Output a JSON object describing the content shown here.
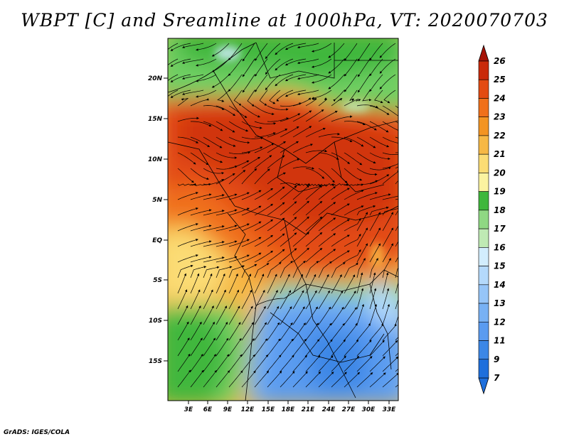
{
  "title": "WBPT [C] and Sreamline at 1000hPa, VT: 2020070703",
  "credit": "GrADS: IGES/COLA",
  "map": {
    "lat_labels": [
      "20N",
      "15N",
      "10N",
      "5N",
      "EQ",
      "5S",
      "10S",
      "15S"
    ],
    "lon_labels": [
      "3E",
      "6E",
      "9E",
      "12E",
      "15E",
      "18E",
      "21E",
      "24E",
      "27E",
      "30E",
      "33E"
    ]
  },
  "colorbar": {
    "levels": [
      "7",
      "9",
      "11",
      "12",
      "13",
      "14",
      "15",
      "16",
      "17",
      "18",
      "19",
      "20",
      "21",
      "22",
      "23",
      "24",
      "25",
      "26"
    ],
    "colors": [
      "#1e6fdc",
      "#3c87e6",
      "#5a9bf0",
      "#78b1f4",
      "#96c5f8",
      "#b4d9fb",
      "#d2edfd",
      "#bfeab4",
      "#8fd883",
      "#3fb73c",
      "#fbf3a0",
      "#fbdc74",
      "#f6b845",
      "#f39422",
      "#f0701a",
      "#e34b12",
      "#c92a0a",
      "#a51206"
    ]
  }
}
